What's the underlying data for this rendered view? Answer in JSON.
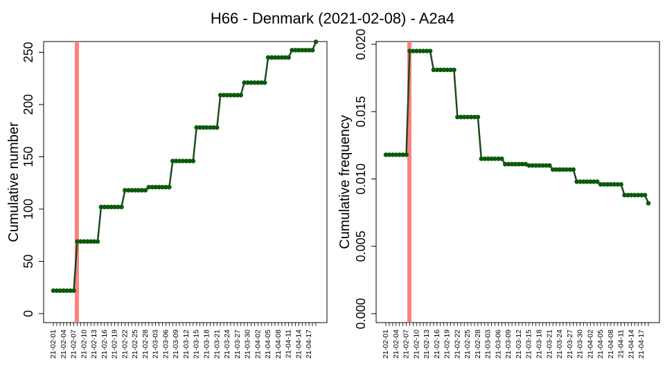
{
  "title": "H66 - Denmark (2021-02-08) - A2a4",
  "colors": {
    "line": "#1a4a1a",
    "point": "#0a5a0a",
    "marker": "#ff8080",
    "axis": "#000000"
  },
  "chart_data": [
    {
      "type": "line",
      "ylabel": "Cumulative number",
      "ylim": [
        0,
        260
      ],
      "yticks": [
        0,
        50,
        100,
        150,
        200,
        250
      ],
      "ytick_labels": [
        "0",
        "50",
        "100",
        "150",
        "200",
        "250"
      ],
      "marker_date": "2021-02-08",
      "start_date": "2021-02-01",
      "end_date": "2021-04-19",
      "xtick_labels": [
        "21-02-01",
        "21-02-04",
        "21-02-07",
        "21-02-10",
        "21-02-13",
        "21-02-16",
        "21-02-19",
        "21-02-22",
        "21-02-25",
        "21-02-28",
        "21-03-03",
        "21-03-06",
        "21-03-09",
        "21-03-12",
        "21-03-15",
        "21-03-18",
        "21-03-21",
        "21-03-24",
        "21-03-27",
        "21-03-30",
        "21-04-02",
        "21-04-05",
        "21-04-08",
        "21-04-11",
        "21-04-14",
        "21-04-17"
      ],
      "steps": [
        {
          "from": "2021-02-01",
          "value": 22
        },
        {
          "from": "2021-02-08",
          "value": 69
        },
        {
          "from": "2021-02-15",
          "value": 102
        },
        {
          "from": "2021-02-22",
          "value": 118
        },
        {
          "from": "2021-03-01",
          "value": 121
        },
        {
          "from": "2021-03-08",
          "value": 146
        },
        {
          "from": "2021-03-15",
          "value": 178
        },
        {
          "from": "2021-03-22",
          "value": 209
        },
        {
          "from": "2021-03-29",
          "value": 221
        },
        {
          "from": "2021-04-05",
          "value": 245
        },
        {
          "from": "2021-04-12",
          "value": 252
        },
        {
          "from": "2021-04-19",
          "value": 260
        }
      ]
    },
    {
      "type": "line",
      "ylabel": "Cumulative frequency",
      "ylim": [
        0,
        0.02
      ],
      "yticks": [
        0,
        0.005,
        0.01,
        0.015,
        0.02
      ],
      "ytick_labels": [
        "0.000",
        "0.005",
        "0.010",
        "0.015",
        "0.020"
      ],
      "marker_date": "2021-02-08",
      "start_date": "2021-02-01",
      "end_date": "2021-04-19",
      "xtick_labels": [
        "21-02-01",
        "21-02-04",
        "21-02-07",
        "21-02-10",
        "21-02-13",
        "21-02-16",
        "21-02-19",
        "21-02-22",
        "21-02-25",
        "21-02-28",
        "21-03-03",
        "21-03-06",
        "21-03-09",
        "21-03-12",
        "21-03-15",
        "21-03-18",
        "21-03-21",
        "21-03-24",
        "21-03-27",
        "21-03-30",
        "21-04-02",
        "21-04-05",
        "21-04-08",
        "21-04-11",
        "21-04-14",
        "21-04-17"
      ],
      "steps": [
        {
          "from": "2021-02-01",
          "value": 0.0118
        },
        {
          "from": "2021-02-08",
          "value": 0.0195
        },
        {
          "from": "2021-02-15",
          "value": 0.0181
        },
        {
          "from": "2021-02-22",
          "value": 0.0146
        },
        {
          "from": "2021-03-01",
          "value": 0.0115
        },
        {
          "from": "2021-03-08",
          "value": 0.0111
        },
        {
          "from": "2021-03-15",
          "value": 0.011
        },
        {
          "from": "2021-03-22",
          "value": 0.0107
        },
        {
          "from": "2021-03-29",
          "value": 0.0098
        },
        {
          "from": "2021-04-05",
          "value": 0.0096
        },
        {
          "from": "2021-04-12",
          "value": 0.0088
        },
        {
          "from": "2021-04-19",
          "value": 0.0082
        }
      ]
    }
  ]
}
